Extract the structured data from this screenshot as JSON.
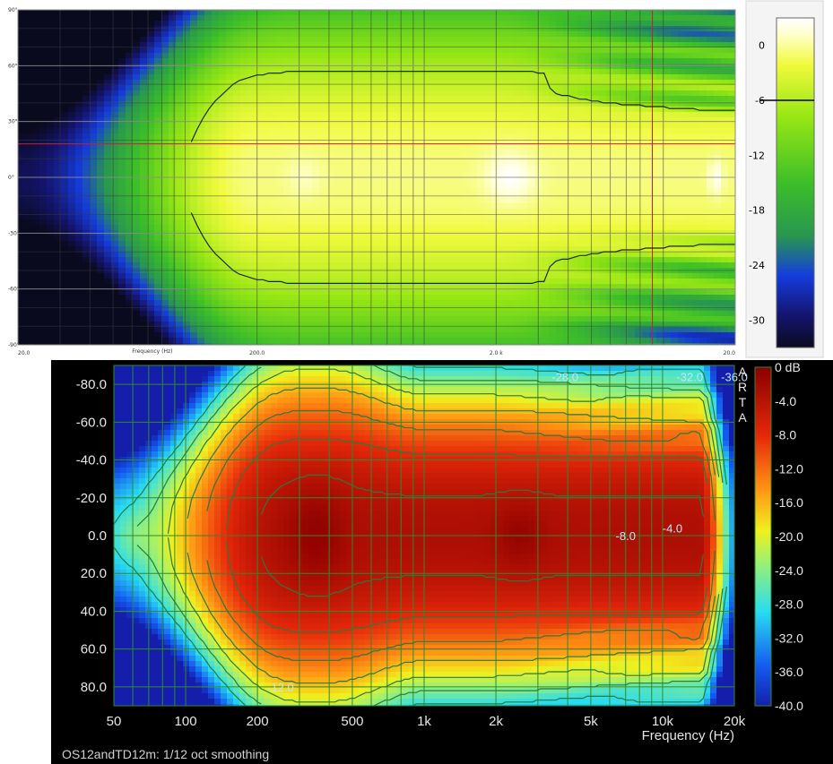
{
  "chart_data": [
    {
      "type": "heatmap",
      "title": "",
      "xlabel": "Frequency (Hz)",
      "ylabel": "",
      "x_scale": "log",
      "x_tick_labels": [
        "20.0",
        "200.0",
        "2.0 k",
        "20.0"
      ],
      "xlim": [
        20,
        20000
      ],
      "y_tick_labels": [
        "90°",
        "60°",
        "30°",
        "0°",
        "-30°",
        "-60°",
        "-90°"
      ],
      "ylim": [
        -90,
        90
      ],
      "colorbar": {
        "ticks": [
          "0",
          "-6",
          "-12",
          "-18",
          "-24",
          "-30"
        ],
        "range": [
          -33,
          3
        ],
        "marker": -6
      },
      "crosshair": {
        "angle": 18,
        "frequency": 9000
      },
      "contour_db": -6,
      "grid": true
    },
    {
      "type": "heatmap",
      "title": "",
      "xlabel": "Frequency (Hz)",
      "ylabel": "",
      "x_scale": "log",
      "x_tick_labels": [
        "50",
        "100",
        "200",
        "500",
        "1k",
        "2k",
        "5k",
        "10k",
        "20k"
      ],
      "xlim": [
        50,
        20000
      ],
      "y_tick_labels": [
        "-80.0",
        "-60.0",
        "-40.0",
        "-20.0",
        "0.0",
        "20.0",
        "40.0",
        "60.0",
        "80.0"
      ],
      "ylim": [
        -90,
        90
      ],
      "colorbar": {
        "ticks": [
          "0 dB",
          "-4.0",
          "-8.0",
          "-12.0",
          "-16.0",
          "-20.0",
          "-24.0",
          "-28.0",
          "-32.0",
          "-36.0",
          "-40.0"
        ],
        "range": [
          -40,
          0
        ]
      },
      "contour_labels": [
        "-28.0",
        "-32.0",
        "-36.0",
        "-8.0",
        "-4.0",
        "-12.0"
      ],
      "watermark": "A R T A",
      "caption": "OS12andTD12m: 1/12 oct smoothing",
      "grid": true
    }
  ]
}
